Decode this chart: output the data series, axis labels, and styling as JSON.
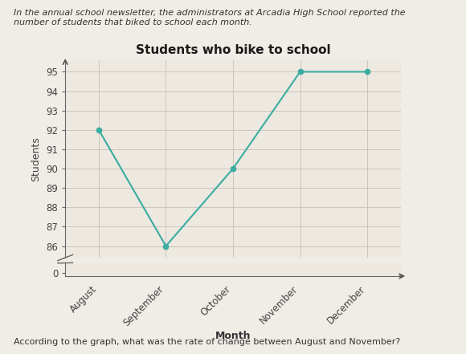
{
  "months": [
    "August",
    "September",
    "October",
    "November",
    "December"
  ],
  "values": [
    92,
    86,
    90,
    95,
    95
  ],
  "line_color": "#3aada0",
  "marker_color": "#3aada0",
  "title": "Students who bike to school",
  "xlabel": "Month",
  "ylabel": "Students",
  "yticks_main": [
    86,
    87,
    88,
    89,
    90,
    91,
    92,
    93,
    94,
    95
  ],
  "background_color": "#ede8e0",
  "grid_color": "#c8c0b8",
  "title_fontsize": 11,
  "axis_label_fontsize": 9,
  "tick_fontsize": 8.5,
  "header_text": "In the annual school newsletter, the administrators at Arcadia High School reported the\nnumber of students that biked to school each month.",
  "footer_text": "According to the graph, what was the rate of change between August and November?"
}
